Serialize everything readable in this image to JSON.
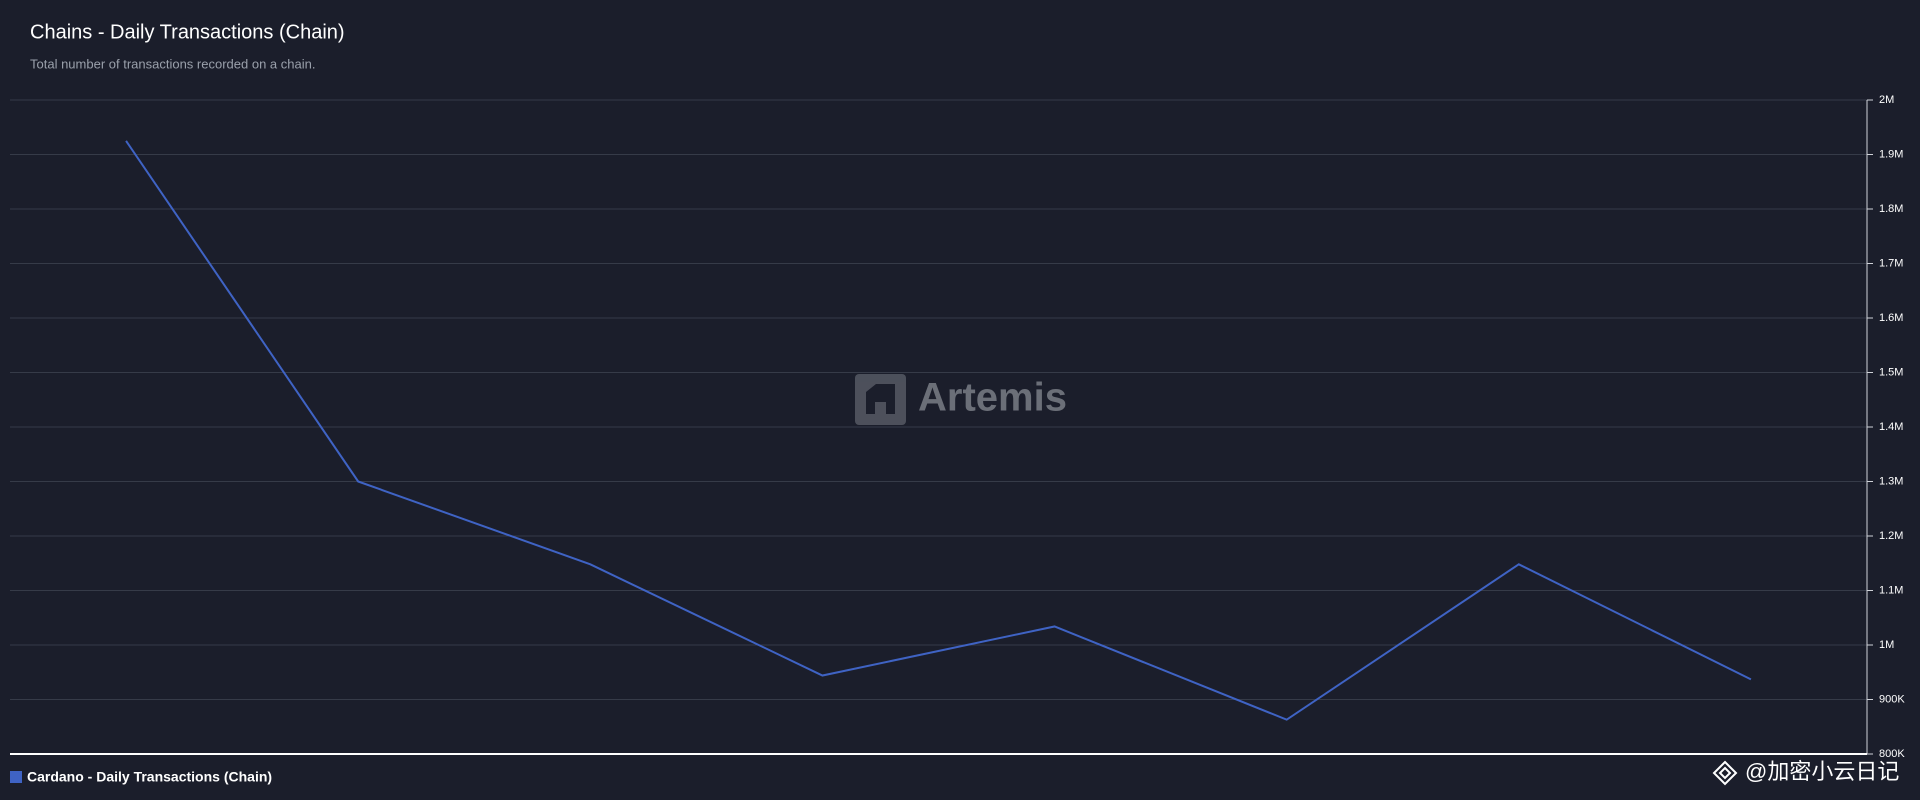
{
  "chart_data": {
    "type": "line",
    "title": "Chains - Daily Transactions (Chain)",
    "subtitle": "Total number of transactions recorded on a chain.",
    "categories": [
      null,
      null,
      null,
      null,
      null,
      null,
      null,
      null
    ],
    "series": [
      {
        "name": "Cardano - Daily Transactions (Chain)",
        "color": "#3f63c4",
        "values": [
          1925000,
          1300000,
          1148000,
          944000,
          1034000,
          863000,
          1148000,
          937000
        ]
      }
    ],
    "ylim": [
      800000,
      2000000
    ],
    "yticks": [
      {
        "value": 800000,
        "label": "800K"
      },
      {
        "value": 900000,
        "label": "900K"
      },
      {
        "value": 1000000,
        "label": "1M"
      },
      {
        "value": 1100000,
        "label": "1.1M"
      },
      {
        "value": 1200000,
        "label": "1.2M"
      },
      {
        "value": 1300000,
        "label": "1.3M"
      },
      {
        "value": 1400000,
        "label": "1.4M"
      },
      {
        "value": 1500000,
        "label": "1.5M"
      },
      {
        "value": 1600000,
        "label": "1.6M"
      },
      {
        "value": 1700000,
        "label": "1.7M"
      },
      {
        "value": 1800000,
        "label": "1.8M"
      },
      {
        "value": 1900000,
        "label": "1.9M"
      },
      {
        "value": 2000000,
        "label": "2M"
      }
    ],
    "grid": true,
    "y_axis_side": "right"
  },
  "watermarks": [
    "Artemis",
    "@加密小云日记"
  ]
}
